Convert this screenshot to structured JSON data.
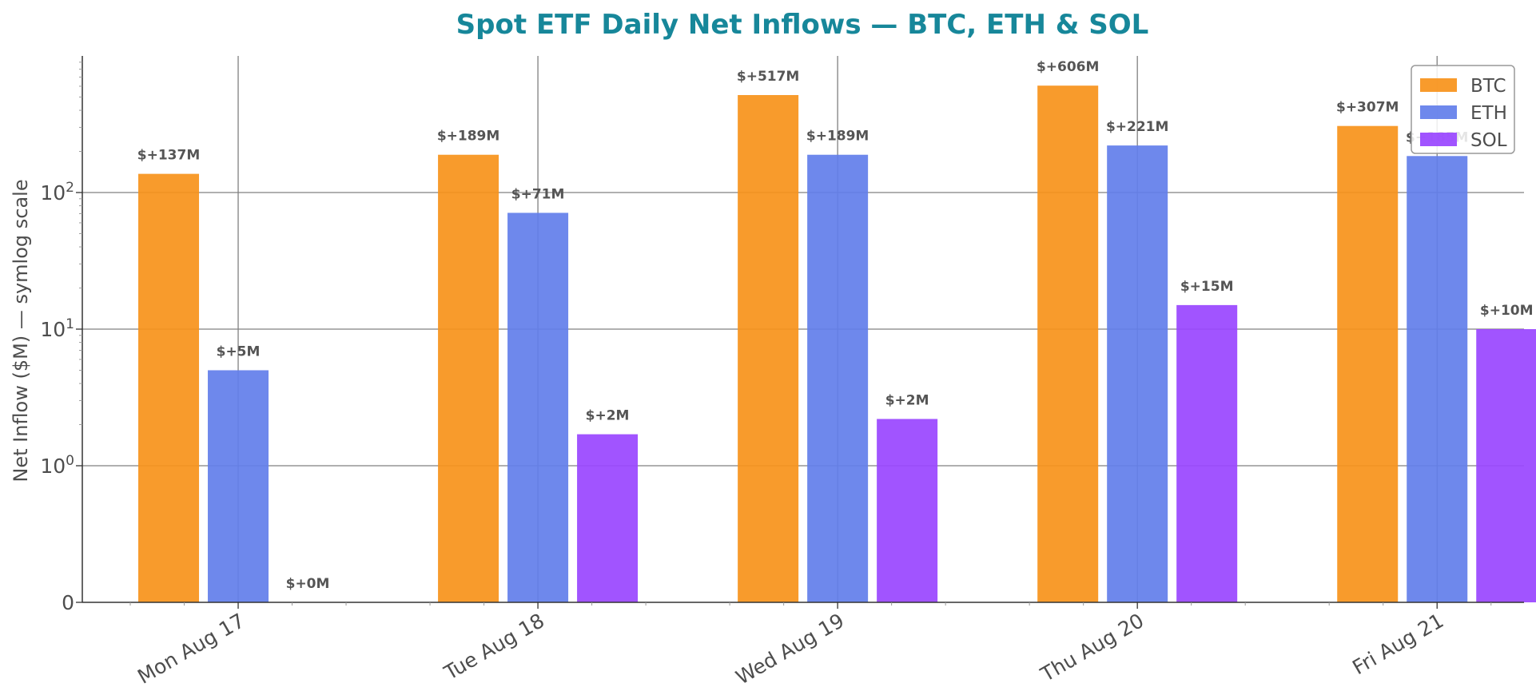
{
  "chart_data": {
    "type": "bar",
    "title": "Spot ETF Daily Net Inflows — BTC, ETH & SOL",
    "xlabel": "",
    "ylabel": "Net Inflow ($M) — symlog scale",
    "yscale": "symlog",
    "ylim": [
      0,
      1000
    ],
    "yticks": [
      0,
      1,
      10,
      100
    ],
    "categories": [
      "Mon Aug 17",
      "Tue Aug 18",
      "Wed Aug 19",
      "Thu Aug 20",
      "Fri Aug 21"
    ],
    "series": [
      {
        "name": "BTC",
        "color": "#f7931a",
        "values": [
          137,
          189,
          517,
          606,
          307
        ],
        "labels": [
          "$+137M",
          "$+189M",
          "$+517M",
          "$+606M",
          "$+307M"
        ]
      },
      {
        "name": "ETH",
        "color": "#627eea",
        "values": [
          5,
          71,
          189,
          221,
          185
        ],
        "labels": [
          "$+5M",
          "$+71M",
          "$+189M",
          "$+221M",
          "$+185M"
        ]
      },
      {
        "name": "SOL",
        "color": "#9945ff",
        "values": [
          0,
          1.7,
          2.2,
          15,
          10
        ],
        "labels": [
          "$+0M",
          "$+2M",
          "$+2M",
          "$+15M",
          "$+10M"
        ]
      }
    ],
    "grid": true,
    "legend_position": "top-right"
  }
}
